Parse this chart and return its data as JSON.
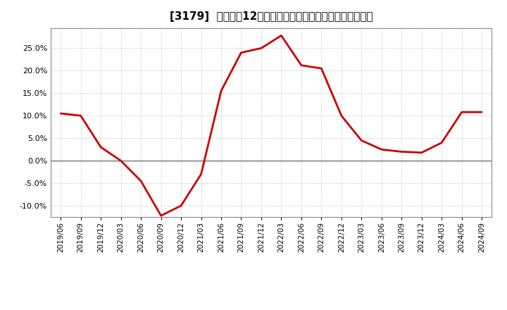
{
  "title": "[3179]  売上高の12か月移動合計の対前年同期増減率の推移",
  "line_color": "#cc0000",
  "background_color": "#ffffff",
  "grid_color": "#bbbbbb",
  "plot_bg_color": "#ffffff",
  "ylim": [
    -0.125,
    0.295
  ],
  "yticks": [
    -0.1,
    -0.05,
    0.0,
    0.05,
    0.1,
    0.15,
    0.2,
    0.25
  ],
  "dates": [
    "2019/06",
    "2019/09",
    "2019/12",
    "2020/03",
    "2020/06",
    "2020/09",
    "2020/12",
    "2021/03",
    "2021/06",
    "2021/09",
    "2021/12",
    "2022/03",
    "2022/06",
    "2022/09",
    "2022/12",
    "2023/03",
    "2023/06",
    "2023/09",
    "2023/12",
    "2024/03",
    "2024/06",
    "2024/09"
  ],
  "values": [
    0.105,
    0.1,
    0.03,
    0.0,
    -0.045,
    -0.122,
    -0.1,
    -0.03,
    0.155,
    0.24,
    0.25,
    0.278,
    0.212,
    0.205,
    0.1,
    0.045,
    0.025,
    0.02,
    0.018,
    0.04,
    0.108,
    0.108
  ],
  "title_fontsize": 11,
  "tick_fontsize": 8,
  "xtick_fontsize": 7.5,
  "linewidth": 2.0
}
